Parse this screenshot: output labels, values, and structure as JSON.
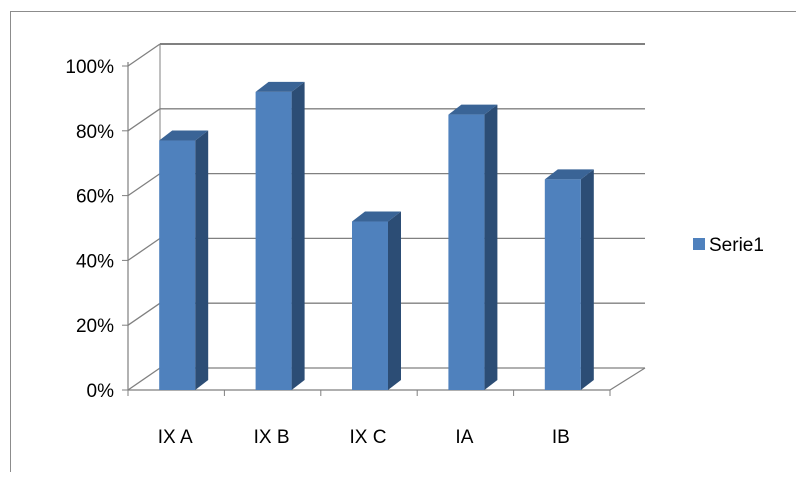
{
  "chart_data": {
    "type": "bar",
    "style": "3d-clustered-column",
    "categories": [
      "IX A",
      "IX B",
      "IX C",
      "IA",
      "IB"
    ],
    "series": [
      {
        "name": "Serie1",
        "values": [
          77,
          92,
          52,
          85,
          65
        ],
        "color": "#4f81bd"
      }
    ],
    "y_ticks": [
      "0%",
      "20%",
      "40%",
      "60%",
      "80%",
      "100%"
    ],
    "ylim": [
      0,
      100
    ],
    "grid": true,
    "legend": "right"
  },
  "colors": {
    "bar_front": "#4f81bd",
    "bar_side": "#2c4d75",
    "bar_top": "#3a6496",
    "gridline": "#808080",
    "axis": "#7f7f7f"
  }
}
